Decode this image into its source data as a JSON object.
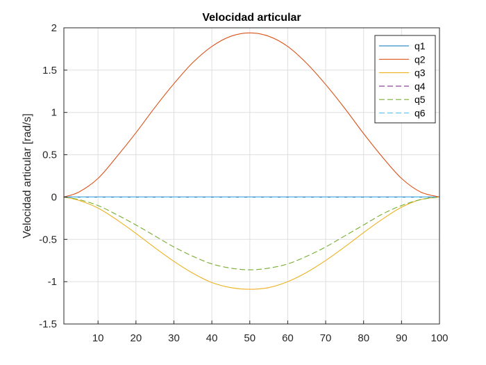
{
  "chart_data": {
    "type": "line",
    "title": "Velocidad articular",
    "xlabel": "",
    "ylabel": "Velocidad articular [rad/s]",
    "xlim": [
      1,
      100
    ],
    "ylim": [
      -1.5,
      2
    ],
    "xticks": [
      10,
      20,
      30,
      40,
      50,
      60,
      70,
      80,
      90,
      100
    ],
    "yticks": [
      -1.5,
      -1,
      -0.5,
      0,
      0.5,
      1,
      1.5,
      2
    ],
    "grid": true,
    "legend_position": "top-right",
    "x": [
      1,
      5,
      10,
      15,
      20,
      25,
      30,
      35,
      40,
      45,
      50,
      55,
      60,
      65,
      70,
      75,
      80,
      85,
      90,
      95,
      100
    ],
    "series": [
      {
        "name": "q1",
        "color": "#0072BD",
        "dash": "solid",
        "values": [
          0,
          0,
          0,
          0,
          0,
          0,
          0,
          0,
          0,
          0,
          0,
          0,
          0,
          0,
          0,
          0,
          0,
          0,
          0,
          0,
          0
        ]
      },
      {
        "name": "q2",
        "color": "#D95319",
        "dash": "solid",
        "values": [
          0,
          0.06,
          0.22,
          0.48,
          0.76,
          1.06,
          1.34,
          1.59,
          1.78,
          1.9,
          1.94,
          1.9,
          1.78,
          1.58,
          1.33,
          1.05,
          0.75,
          0.47,
          0.22,
          0.06,
          0
        ]
      },
      {
        "name": "q3",
        "color": "#EDB120",
        "dash": "solid",
        "values": [
          0,
          -0.04,
          -0.13,
          -0.27,
          -0.43,
          -0.6,
          -0.76,
          -0.9,
          -1.01,
          -1.07,
          -1.09,
          -1.07,
          -1.0,
          -0.89,
          -0.75,
          -0.59,
          -0.42,
          -0.26,
          -0.12,
          -0.03,
          0
        ]
      },
      {
        "name": "q4",
        "color": "#7E2F8E",
        "dash": "dashed",
        "values": [
          0,
          0,
          0,
          0,
          0,
          0,
          0,
          0,
          0,
          0,
          0,
          0,
          0,
          0,
          0,
          0,
          0,
          0,
          0,
          0,
          0
        ]
      },
      {
        "name": "q5",
        "color": "#77AC30",
        "dash": "dashed",
        "values": [
          0,
          -0.03,
          -0.1,
          -0.21,
          -0.33,
          -0.46,
          -0.59,
          -0.7,
          -0.79,
          -0.84,
          -0.86,
          -0.84,
          -0.79,
          -0.7,
          -0.59,
          -0.46,
          -0.33,
          -0.2,
          -0.1,
          -0.03,
          0
        ]
      },
      {
        "name": "q6",
        "color": "#4DBEEE",
        "dash": "dashed",
        "values": [
          0,
          0,
          0,
          0,
          0,
          0,
          0,
          0,
          0,
          0,
          0,
          0,
          0,
          0,
          0,
          0,
          0,
          0,
          0,
          0,
          0
        ]
      }
    ]
  }
}
